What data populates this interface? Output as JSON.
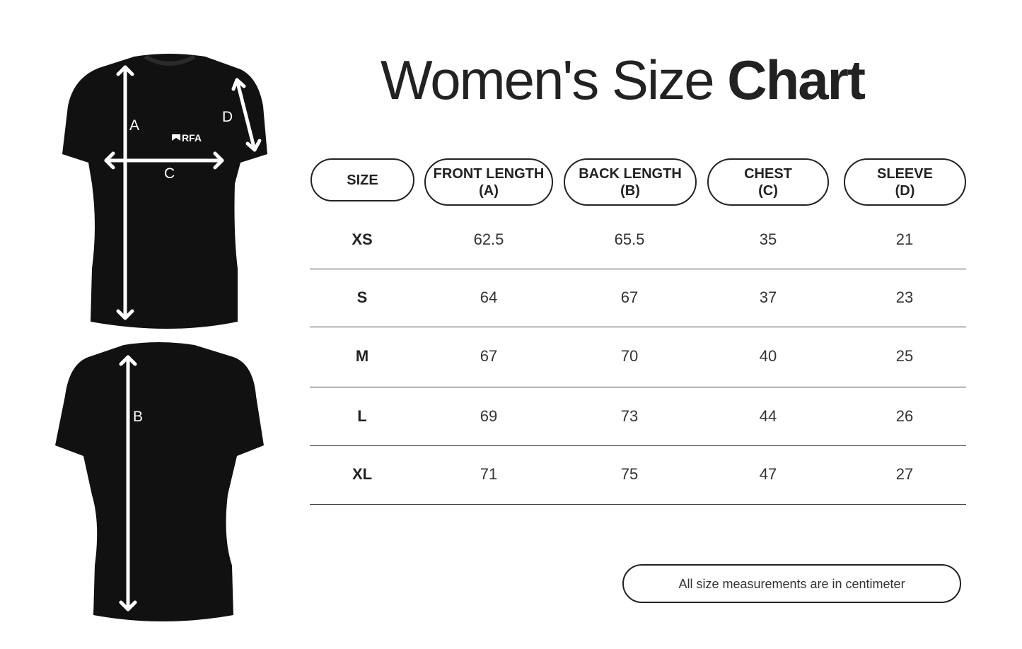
{
  "title": {
    "regular": "Women's Size ",
    "bold": "Chart"
  },
  "diagram": {
    "labels": {
      "a": "A",
      "b": "B",
      "c": "C",
      "d": "D"
    },
    "logo_text": "RFA",
    "shirt_color": "#111111",
    "arrow_color": "#ffffff"
  },
  "table": {
    "headers": [
      {
        "line1": "SIZE",
        "line2": ""
      },
      {
        "line1": "FRONT LENGTH",
        "line2": "(A)"
      },
      {
        "line1": "BACK LENGTH",
        "line2": "(B)"
      },
      {
        "line1": "CHEST",
        "line2": "(C)"
      },
      {
        "line1": "SLEEVE",
        "line2": "(D)"
      }
    ],
    "rows": [
      [
        "XS",
        "62.5",
        "65.5",
        "35",
        "21"
      ],
      [
        "S",
        "64",
        "67",
        "37",
        "23"
      ],
      [
        "M",
        "67",
        "70",
        "40",
        "25"
      ],
      [
        "L",
        "69",
        "73",
        "44",
        "26"
      ],
      [
        "XL",
        "71",
        "75",
        "47",
        "27"
      ]
    ]
  },
  "note": "All size measurements are in centimeter"
}
